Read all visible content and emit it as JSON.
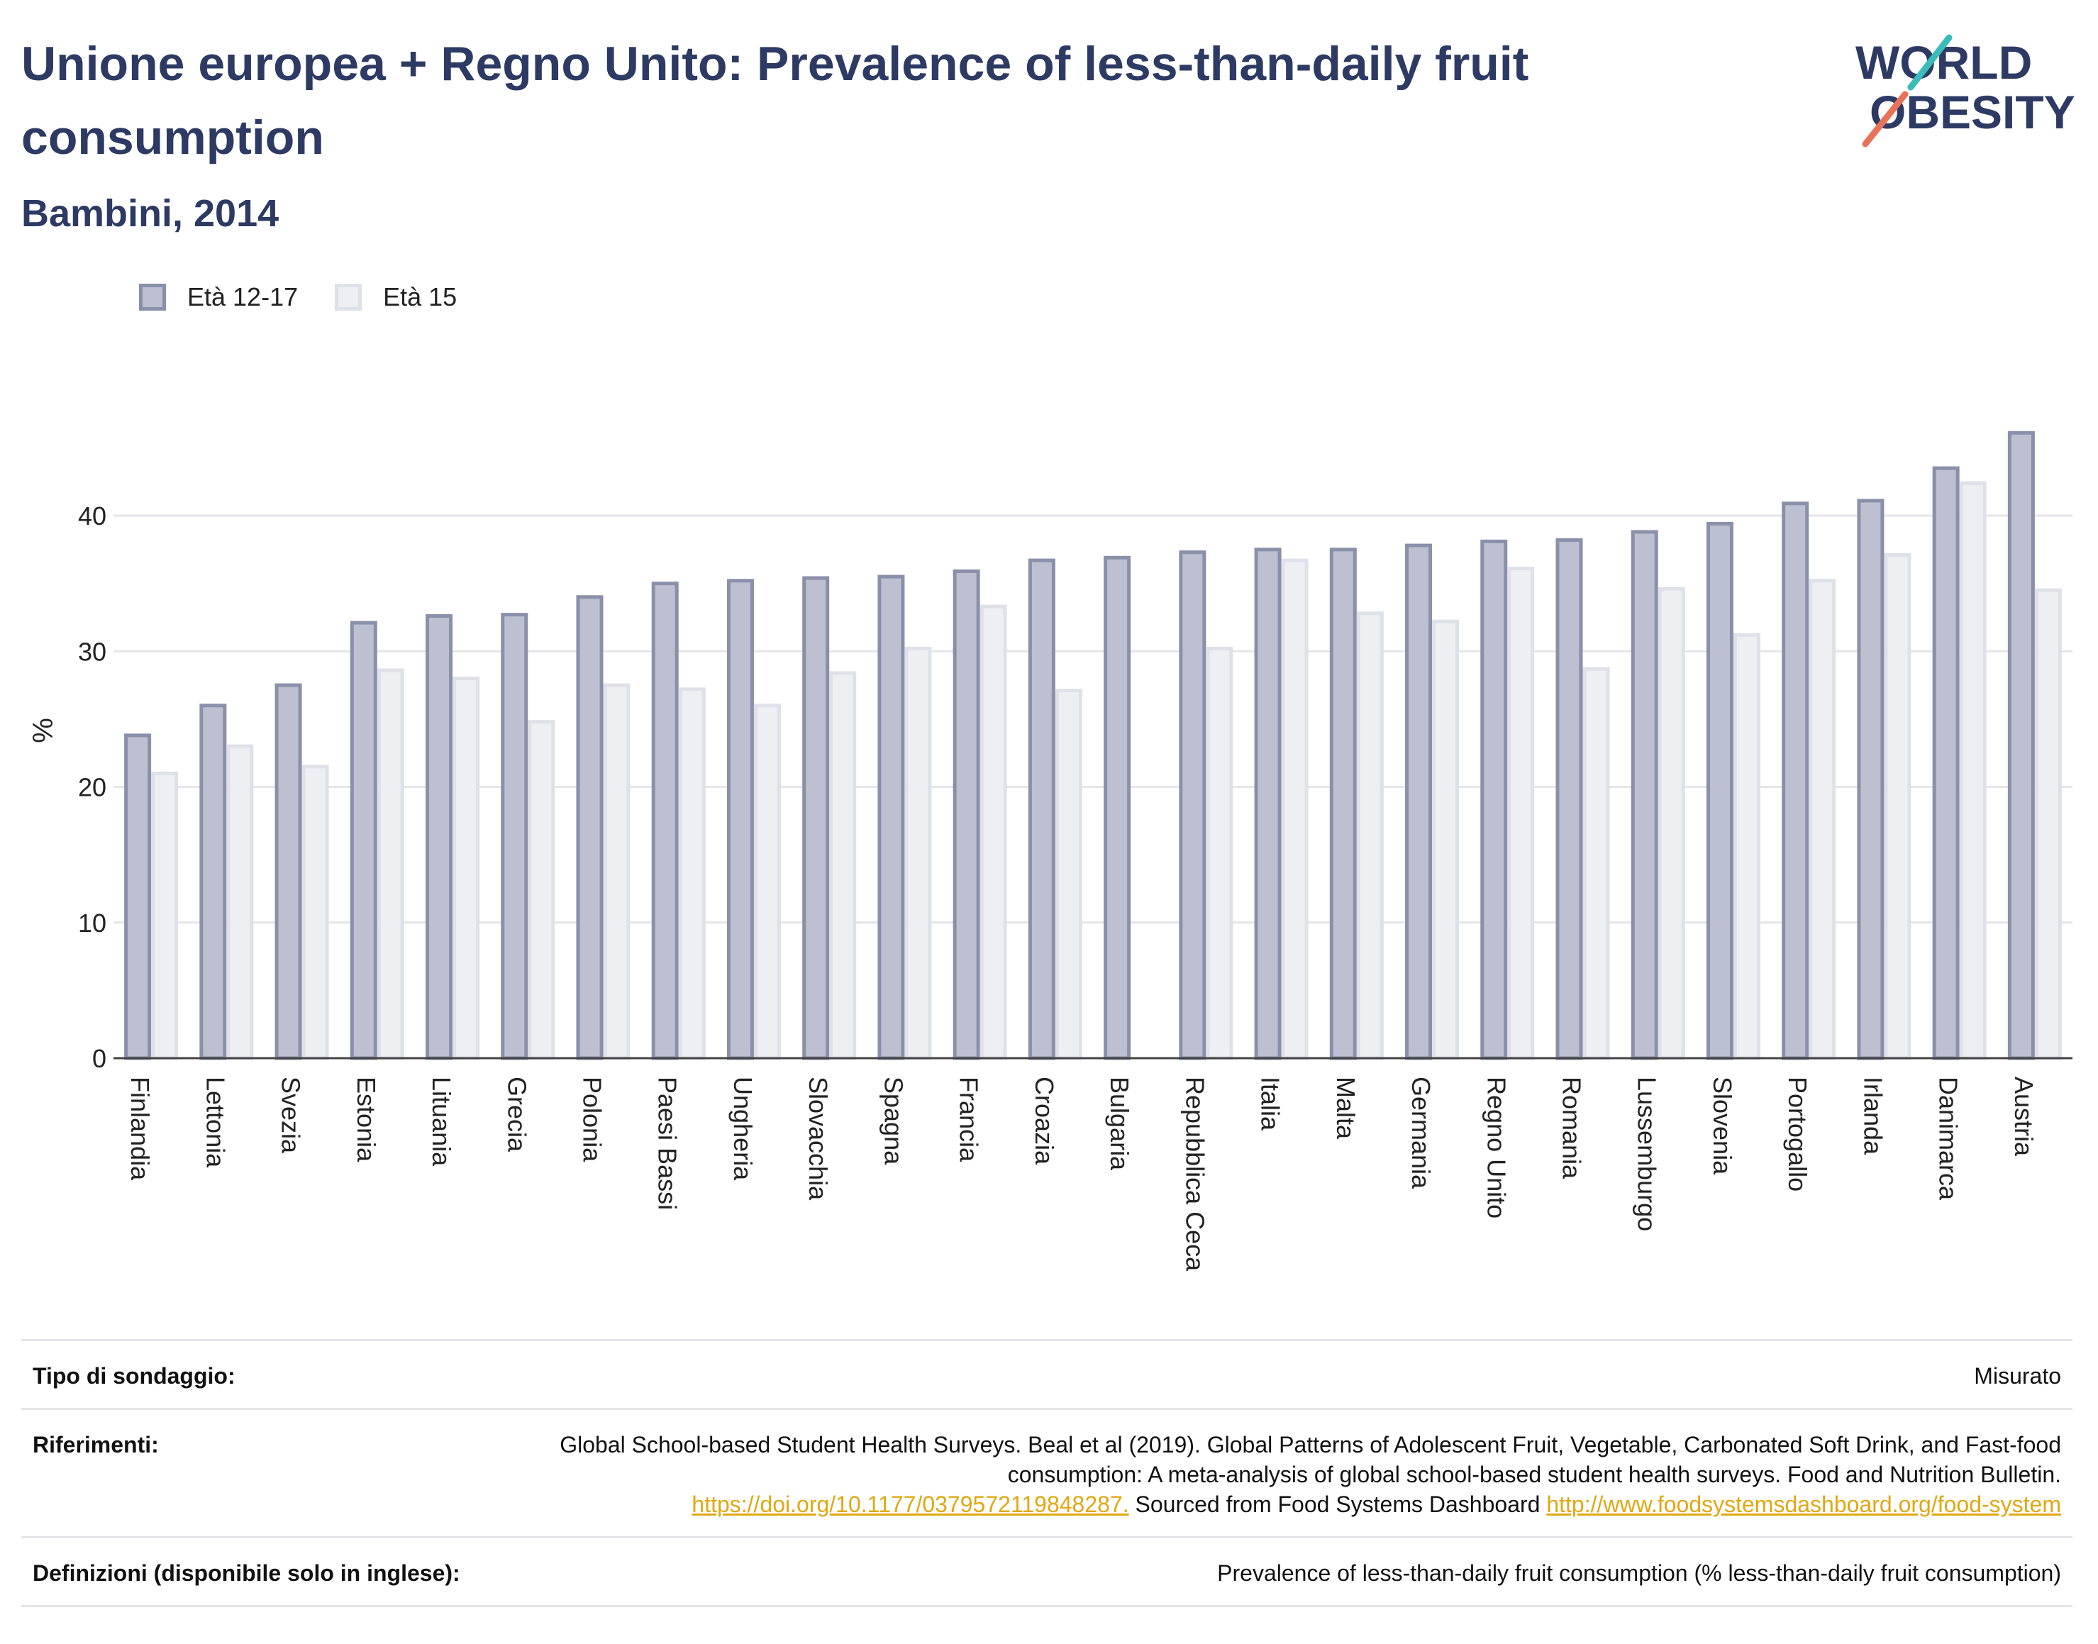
{
  "header": {
    "title": "Unione europea + Regno Unito: Prevalence of less-than-daily fruit consumption",
    "subtitle": "Bambini, 2014"
  },
  "logo": {
    "line1": "WORLD",
    "line2": "OBESITY"
  },
  "colors": {
    "series1_fill": "#bcc0d0",
    "series1_stroke": "#8a90aa",
    "series2_fill": "#eeeff3",
    "series2_stroke": "#dfe1e8",
    "title": "#2d3a63",
    "link": "#e0a812"
  },
  "chart_data": {
    "type": "bar",
    "ylabel": "%",
    "xlabel": "",
    "ylim": [
      0,
      48
    ],
    "yticks": [
      0,
      10,
      20,
      30,
      40
    ],
    "grid": true,
    "legend_position": "top-left",
    "categories": [
      "Finlandia",
      "Lettonia",
      "Svezia",
      "Estonia",
      "Lituania",
      "Grecia",
      "Polonia",
      "Paesi Bassi",
      "Ungheria",
      "Slovacchia",
      "Spagna",
      "Francia",
      "Croazia",
      "Bulgaria",
      "Repubblica Ceca",
      "Italia",
      "Malta",
      "Germania",
      "Regno Unito",
      "Romania",
      "Lussemburgo",
      "Slovenia",
      "Portogallo",
      "Irlanda",
      "Danimarca",
      "Austria"
    ],
    "series": [
      {
        "name": "Età 12-17",
        "values": [
          23.8,
          26.0,
          27.5,
          32.1,
          32.6,
          32.7,
          34.0,
          35.0,
          35.2,
          35.4,
          35.5,
          35.9,
          36.7,
          36.9,
          37.3,
          37.5,
          37.5,
          37.8,
          38.1,
          38.2,
          38.8,
          39.4,
          40.9,
          41.1,
          43.5,
          46.1
        ]
      },
      {
        "name": "Età 15",
        "values": [
          21.0,
          23.0,
          21.5,
          28.6,
          28.0,
          24.8,
          27.5,
          27.2,
          26.0,
          28.4,
          30.2,
          33.3,
          27.1,
          null,
          30.2,
          36.7,
          32.8,
          32.2,
          36.1,
          28.7,
          34.6,
          31.2,
          35.2,
          37.1,
          42.4,
          34.5
        ]
      }
    ]
  },
  "footer": {
    "survey_label": "Tipo di sondaggio:",
    "survey_value": "Misurato",
    "references_label": "Riferimenti:",
    "references_text1": "Global School-based Student Health Surveys. Beal et al (2019). Global Patterns of Adolescent Fruit, Vegetable, Carbonated Soft Drink, and Fast-food consumption: A meta-analysis of global school-based student health surveys. Food and Nutrition Bulletin.",
    "references_link1": "https://doi.org/10.1177/0379572119848287.",
    "references_text2": " Sourced from Food Systems Dashboard ",
    "references_link2": "http://www.foodsystemsdashboard.org/food-system",
    "definitions_label": "Definizioni (disponibile solo in inglese):",
    "definitions_value": "Prevalence of less-than-daily fruit consumption (% less-than-daily fruit consumption)"
  }
}
